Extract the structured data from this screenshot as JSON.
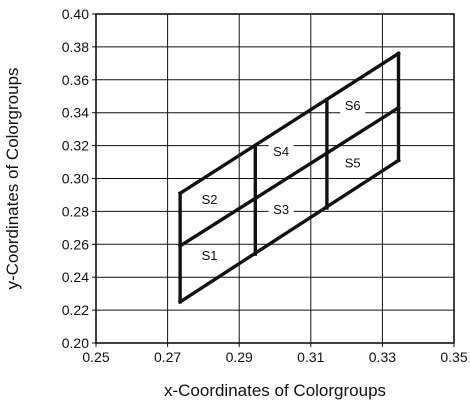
{
  "chart_data": {
    "type": "diagram-plot",
    "title": "",
    "xlabel": "x-Coordinates of Colorgroups",
    "ylabel": "y-Coordinates of Colorgroups",
    "xlim": [
      0.25,
      0.35
    ],
    "ylim": [
      0.2,
      0.4
    ],
    "x_ticks": [
      0.25,
      0.27,
      0.29,
      0.31,
      0.33,
      0.35
    ],
    "x_tick_labels": [
      "0.25",
      "0.27",
      "0.29",
      "0.31",
      "0.33",
      "0.35"
    ],
    "y_ticks": [
      0.2,
      0.22,
      0.24,
      0.26,
      0.28,
      0.3,
      0.32,
      0.34,
      0.36,
      0.38,
      0.4
    ],
    "y_tick_labels": [
      "0.20",
      "0.22",
      "0.24",
      "0.26",
      "0.28",
      "0.30",
      "0.32",
      "0.34",
      "0.36",
      "0.38",
      "0.40"
    ],
    "grid": true,
    "boundary_lines": [
      {
        "x": [
          0.2735,
          0.3345
        ],
        "y": [
          0.225,
          0.311
        ]
      },
      {
        "x": [
          0.2735,
          0.3345
        ],
        "y": [
          0.259,
          0.343
        ]
      },
      {
        "x": [
          0.2735,
          0.3345
        ],
        "y": [
          0.291,
          0.376
        ]
      },
      {
        "x": [
          0.2735,
          0.2735
        ],
        "y": [
          0.225,
          0.291
        ]
      },
      {
        "x": [
          0.2945,
          0.2945
        ],
        "y": [
          0.254,
          0.32
        ]
      },
      {
        "x": [
          0.3145,
          0.3145
        ],
        "y": [
          0.282,
          0.348
        ]
      },
      {
        "x": [
          0.3345,
          0.3345
        ],
        "y": [
          0.311,
          0.376
        ]
      }
    ],
    "regions": [
      {
        "label": "S1",
        "x": 0.2785,
        "y": 0.253
      },
      {
        "label": "S2",
        "x": 0.2785,
        "y": 0.287
      },
      {
        "label": "S3",
        "x": 0.2985,
        "y": 0.281
      },
      {
        "label": "S4",
        "x": 0.2985,
        "y": 0.316
      },
      {
        "label": "S5",
        "x": 0.3185,
        "y": 0.309
      },
      {
        "label": "S6",
        "x": 0.3185,
        "y": 0.344
      }
    ]
  }
}
